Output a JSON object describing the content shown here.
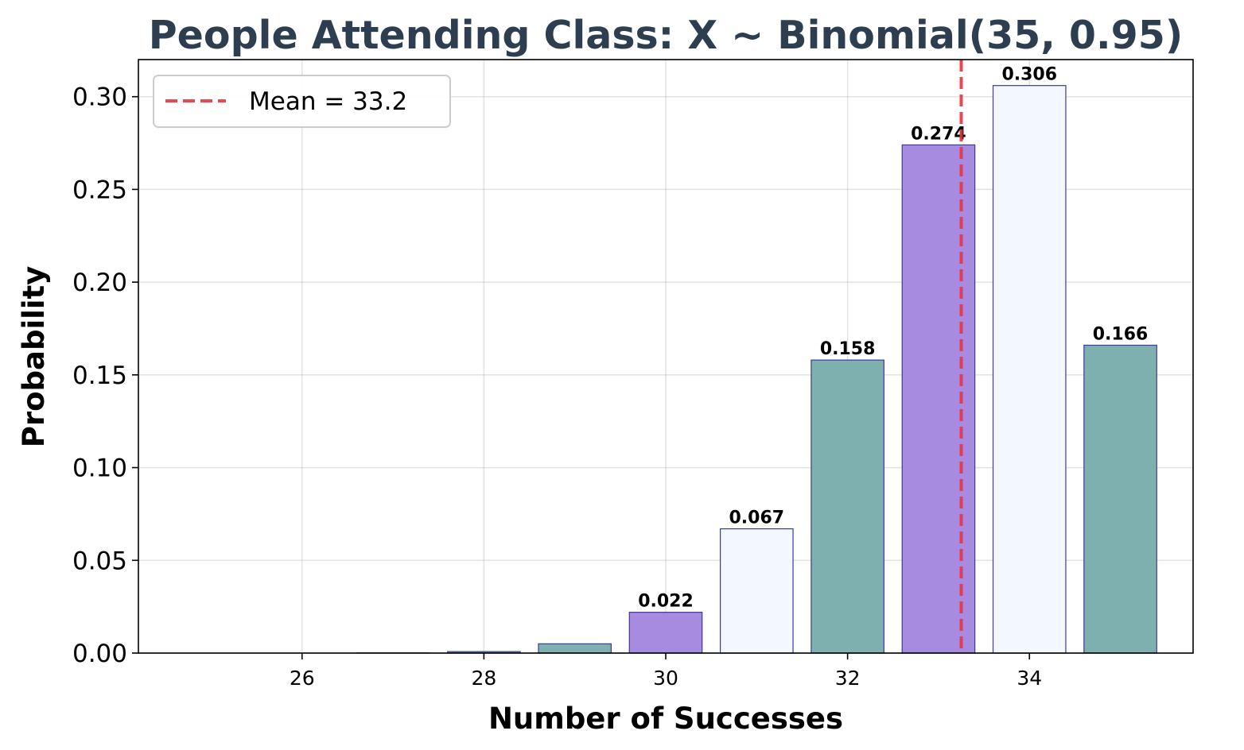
{
  "chart_data": {
    "type": "bar",
    "title": "People Attending Class: X ~ Binomial(35, 0.95)",
    "xlabel": "Number of Successes",
    "ylabel": "Probability",
    "x": [
      25,
      26,
      27,
      28,
      29,
      30,
      31,
      32,
      33,
      34,
      35
    ],
    "values": [
      0.0,
      0.0,
      0.0001,
      0.0008,
      0.005,
      0.022,
      0.067,
      0.158,
      0.274,
      0.306,
      0.166
    ],
    "data_labels": [
      "",
      "",
      "",
      "",
      "",
      "0.022",
      "0.067",
      "0.158",
      "0.274",
      "0.306",
      "0.166"
    ],
    "bar_colors": [
      "#7fb0b0",
      "#a78be0",
      "#f3f7fe",
      "#7fb0b0",
      "#7fb0b0",
      "#a78be0",
      "#f3f7fe",
      "#7fb0b0",
      "#a78be0",
      "#f3f7fe",
      "#7fb0b0"
    ],
    "bar_edge_color": "#3b3b9a",
    "xlim": [
      24.2,
      35.8
    ],
    "ylim": [
      0,
      0.32
    ],
    "xticks": [
      26,
      28,
      30,
      32,
      34
    ],
    "yticks": [
      0.0,
      0.05,
      0.1,
      0.15,
      0.2,
      0.25,
      0.3
    ],
    "ytick_labels": [
      "0.00",
      "0.05",
      "0.10",
      "0.15",
      "0.20",
      "0.25",
      "0.30"
    ],
    "mean_line": {
      "x": 33.25,
      "label": "Mean = 33.2",
      "color": "#e8353f"
    },
    "grid": true,
    "legend": {
      "position": "top-left",
      "entries": [
        "Mean = 33.2"
      ]
    },
    "title_color": "#2c3e50"
  }
}
